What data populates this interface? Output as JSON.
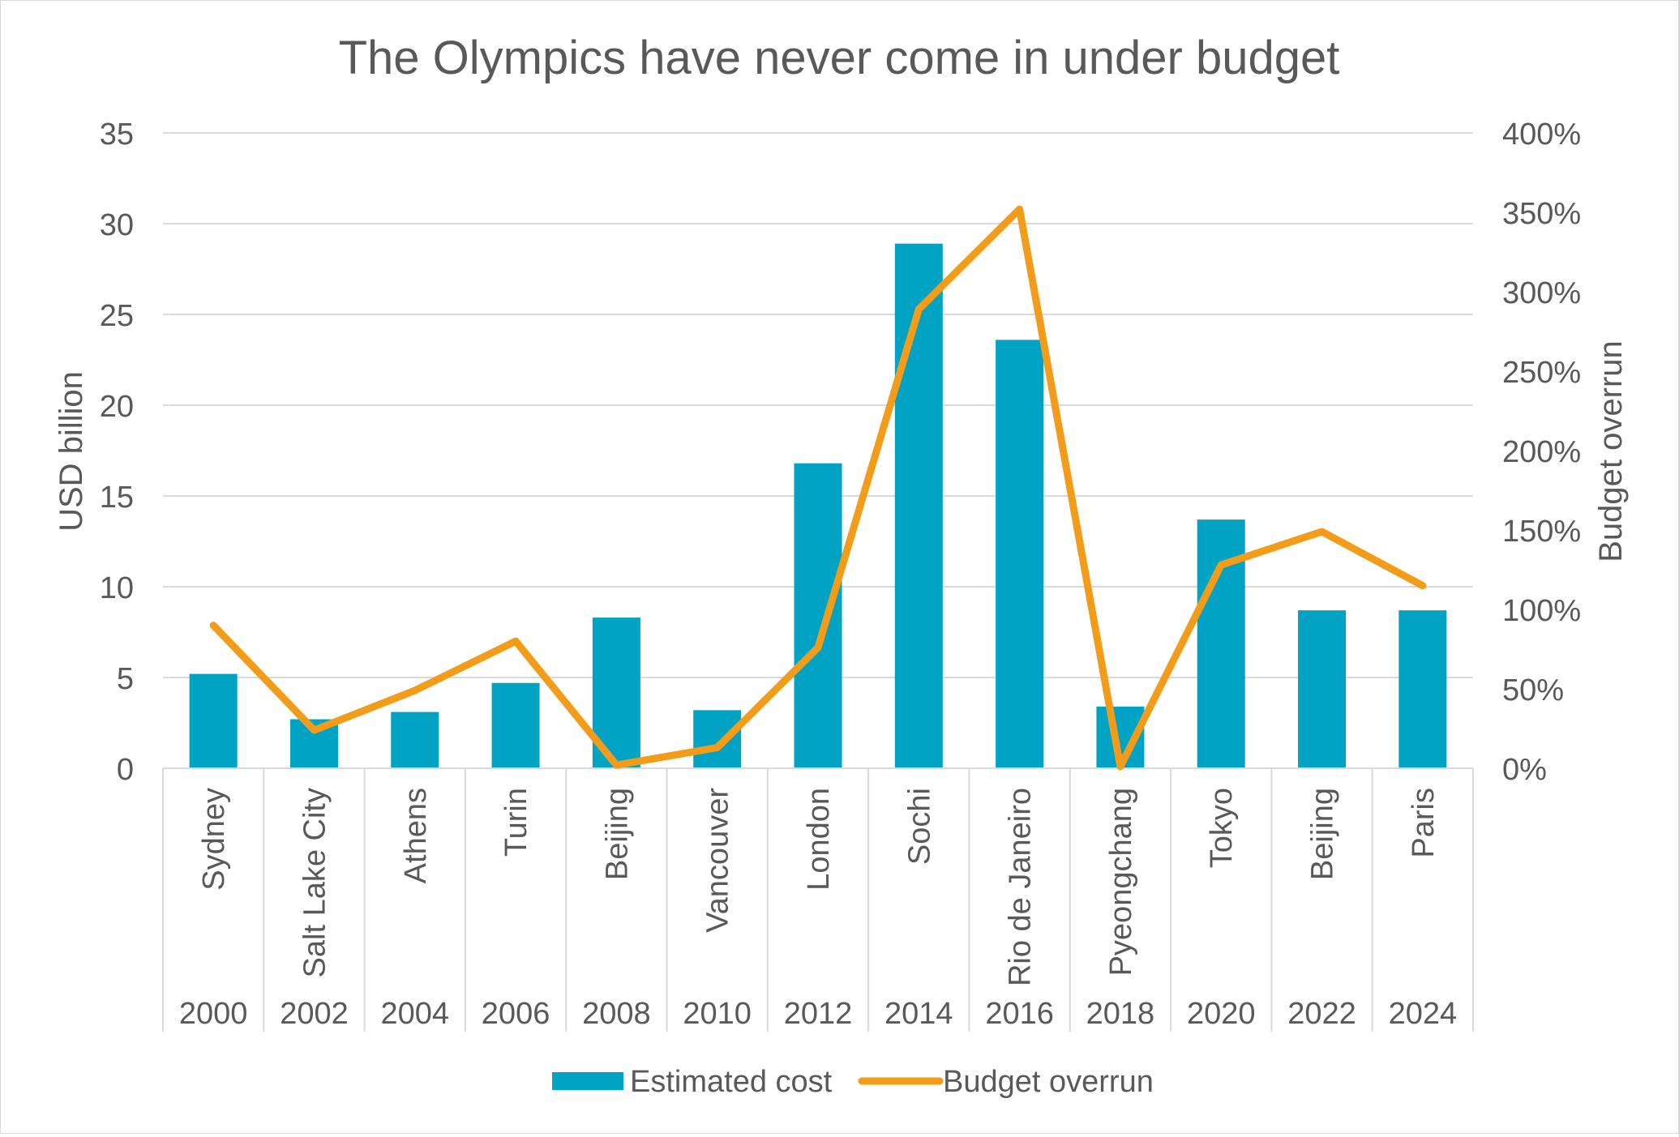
{
  "chart_data": {
    "type": "bar",
    "title": "The Olympics have never come in under budget",
    "ylabel": "USD billion",
    "y2label": "Budget overrun",
    "ylim": [
      0,
      35
    ],
    "yticks": [
      "0",
      "5",
      "10",
      "15",
      "20",
      "25",
      "30",
      "35"
    ],
    "y2lim": [
      0,
      4
    ],
    "y2ticks": [
      "0%",
      "50%",
      "100%",
      "150%",
      "200%",
      "250%",
      "300%",
      "350%",
      "400%"
    ],
    "grid": true,
    "legend_position": "bottom",
    "categories": [
      {
        "city": "Sydney",
        "year": "2000"
      },
      {
        "city": "Salt Lake City",
        "year": "2002"
      },
      {
        "city": "Athens",
        "year": "2004"
      },
      {
        "city": "Turin",
        "year": "2006"
      },
      {
        "city": "Beijing",
        "year": "2008"
      },
      {
        "city": "Vancouver",
        "year": "2010"
      },
      {
        "city": "London",
        "year": "2012"
      },
      {
        "city": "Sochi",
        "year": "2014"
      },
      {
        "city": "Rio de Janeiro",
        "year": "2016"
      },
      {
        "city": "Pyeongchang",
        "year": "2018"
      },
      {
        "city": "Tokyo",
        "year": "2020"
      },
      {
        "city": "Beijing",
        "year": "2022"
      },
      {
        "city": "Paris",
        "year": "2024"
      }
    ],
    "series": [
      {
        "name": "Estimated cost",
        "type": "bar",
        "axis": "left",
        "color": "#00a3c4",
        "values": [
          5.2,
          2.7,
          3.1,
          4.7,
          8.3,
          3.2,
          16.8,
          28.9,
          23.6,
          3.4,
          13.7,
          8.7,
          8.7
        ]
      },
      {
        "name": "Budget overrun",
        "type": "line",
        "axis": "right",
        "color": "#f39c1a",
        "values": [
          0.9,
          0.24,
          0.49,
          0.8,
          0.02,
          0.13,
          0.76,
          2.89,
          3.52,
          0.01,
          1.28,
          1.49,
          1.15
        ]
      }
    ]
  }
}
